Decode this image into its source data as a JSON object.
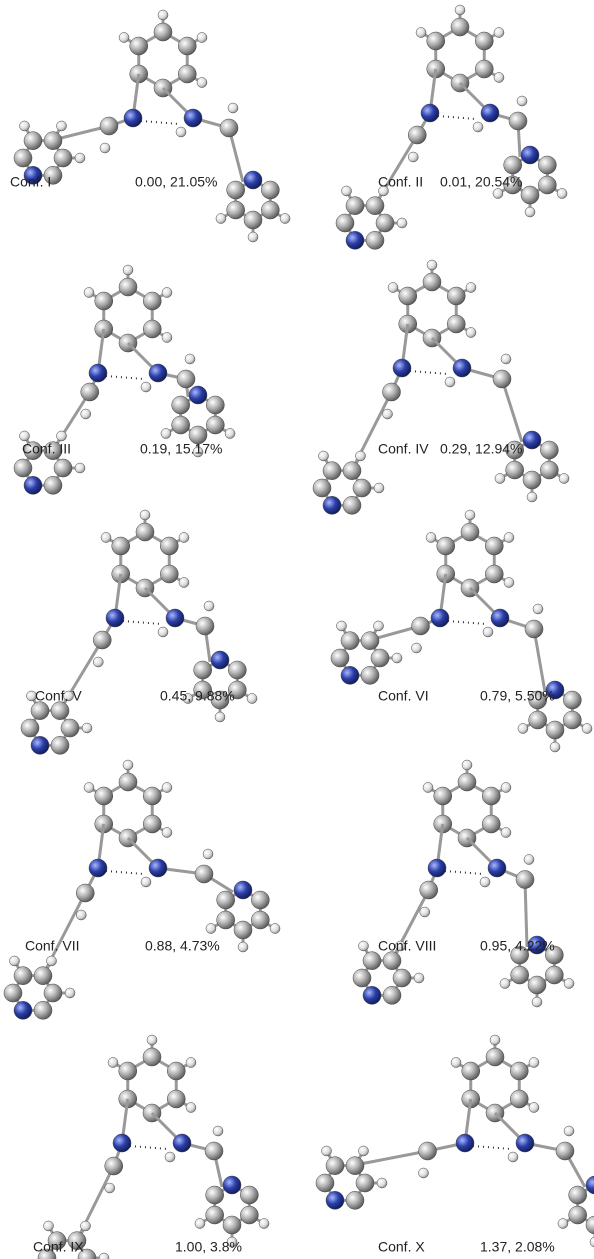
{
  "panels": [
    {
      "label": "Conf. I",
      "value": "0.00, 21.05%"
    },
    {
      "label": "Conf. II",
      "value": "0.01, 20.54%"
    },
    {
      "label": "Conf. III",
      "value": "0.19, 15.17%"
    },
    {
      "label": "Conf. IV",
      "value": "0.29, 12.94%"
    },
    {
      "label": "Conf. V",
      "value": "0.45, 9.88%"
    },
    {
      "label": "Conf. VI",
      "value": "0.79, 5.50%"
    },
    {
      "label": "Conf. VII",
      "value": "0.88, 4.73%"
    },
    {
      "label": "Conf. VIII",
      "value": "0.95, 4.22%"
    },
    {
      "label": "Conf. IX",
      "value": "1.00, 3.8%"
    },
    {
      "label": "Conf. X",
      "value": "1.37, 2.08%"
    }
  ]
}
